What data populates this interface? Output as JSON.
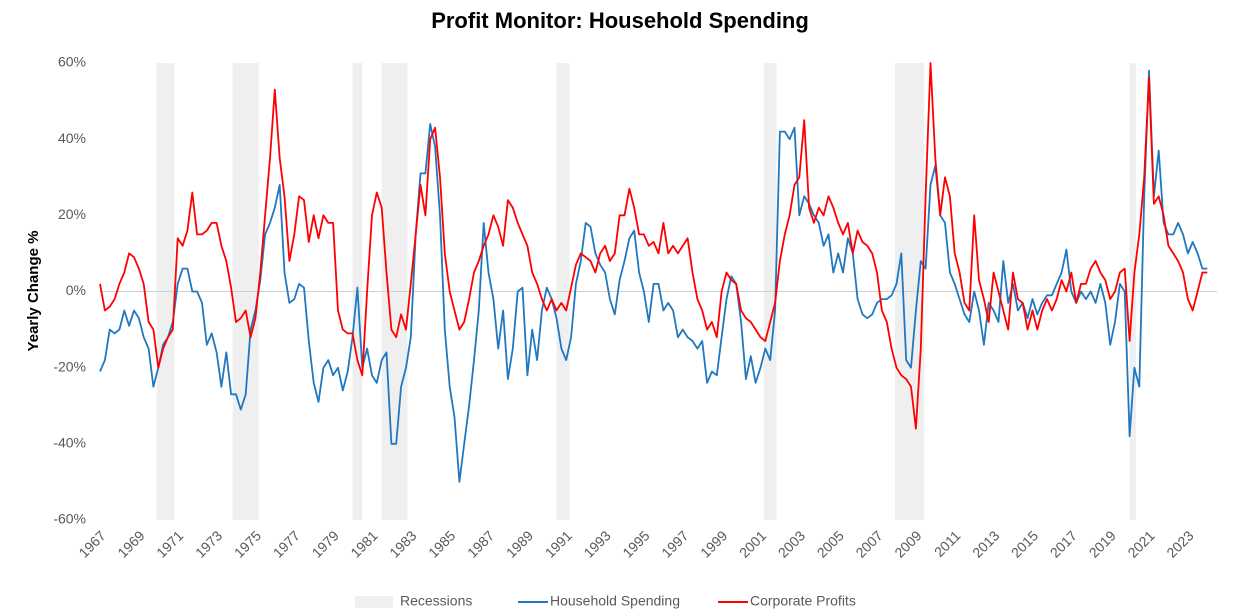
{
  "chart_data": {
    "type": "line",
    "title": "Profit Monitor: Household Spending",
    "y_label": "Yearly Change %",
    "x": [
      1967,
      1967.25,
      1967.5,
      1967.75,
      1968,
      1968.25,
      1968.5,
      1968.75,
      1969,
      1969.25,
      1969.5,
      1969.75,
      1970,
      1970.25,
      1970.5,
      1970.75,
      1971,
      1971.25,
      1971.5,
      1971.75,
      1972,
      1972.25,
      1972.5,
      1972.75,
      1973,
      1973.25,
      1973.5,
      1973.75,
      1974,
      1974.25,
      1974.5,
      1974.75,
      1975,
      1975.25,
      1975.5,
      1975.75,
      1976,
      1976.25,
      1976.5,
      1976.75,
      1977,
      1977.25,
      1977.5,
      1977.75,
      1978,
      1978.25,
      1978.5,
      1978.75,
      1979,
      1979.25,
      1979.5,
      1979.75,
      1980,
      1980.25,
      1980.5,
      1980.75,
      1981,
      1981.25,
      1981.5,
      1981.75,
      1982,
      1982.25,
      1982.5,
      1982.75,
      1983,
      1983.25,
      1983.5,
      1983.75,
      1984,
      1984.25,
      1984.5,
      1984.75,
      1985,
      1985.25,
      1985.5,
      1985.75,
      1986,
      1986.25,
      1986.5,
      1986.75,
      1987,
      1987.25,
      1987.5,
      1987.75,
      1988,
      1988.25,
      1988.5,
      1988.75,
      1989,
      1989.25,
      1989.5,
      1989.75,
      1990,
      1990.25,
      1990.5,
      1990.75,
      1991,
      1991.25,
      1991.5,
      1991.75,
      1992,
      1992.25,
      1992.5,
      1992.75,
      1993,
      1993.25,
      1993.5,
      1993.75,
      1994,
      1994.25,
      1994.5,
      1994.75,
      1995,
      1995.25,
      1995.5,
      1995.75,
      1996,
      1996.25,
      1996.5,
      1996.75,
      1997,
      1997.25,
      1997.5,
      1997.75,
      1998,
      1998.25,
      1998.5,
      1998.75,
      1999,
      1999.25,
      1999.5,
      1999.75,
      2000,
      2000.25,
      2000.5,
      2000.75,
      2001,
      2001.25,
      2001.5,
      2001.75,
      2002,
      2002.25,
      2002.5,
      2002.75,
      2003,
      2003.25,
      2003.5,
      2003.75,
      2004,
      2004.25,
      2004.5,
      2004.75,
      2005,
      2005.25,
      2005.5,
      2005.75,
      2006,
      2006.25,
      2006.5,
      2006.75,
      2007,
      2007.25,
      2007.5,
      2007.75,
      2008,
      2008.25,
      2008.5,
      2008.75,
      2009,
      2009.25,
      2009.5,
      2009.75,
      2010,
      2010.25,
      2010.5,
      2010.75,
      2011,
      2011.25,
      2011.5,
      2011.75,
      2012,
      2012.25,
      2012.5,
      2012.75,
      2013,
      2013.25,
      2013.5,
      2013.75,
      2014,
      2014.25,
      2014.5,
      2014.75,
      2015,
      2015.25,
      2015.5,
      2015.75,
      2016,
      2016.25,
      2016.5,
      2016.75,
      2017,
      2017.25,
      2017.5,
      2017.75,
      2018,
      2018.25,
      2018.5,
      2018.75,
      2019,
      2019.25,
      2019.5,
      2019.75,
      2020,
      2020.25,
      2020.5,
      2020.75,
      2021,
      2021.25,
      2021.5,
      2021.75,
      2022,
      2022.25,
      2022.5,
      2022.75,
      2023,
      2023.25,
      2023.5,
      2023.75,
      2024
    ],
    "series": [
      {
        "name": "Household Spending",
        "color": "#1f78c1",
        "values": [
          -21,
          -18,
          -10,
          -11,
          -10,
          -5,
          -9,
          -5,
          -7,
          -12,
          -15,
          -25,
          -20,
          -14,
          -12,
          -8,
          2,
          6,
          6,
          0,
          0,
          -3,
          -14,
          -11,
          -16,
          -25,
          -16,
          -27,
          -27,
          -31,
          -27,
          -10,
          -5,
          3,
          15,
          18,
          22,
          28,
          5,
          -3,
          -2,
          2,
          1,
          -13,
          -24,
          -29,
          -20,
          -18,
          -22,
          -20,
          -26,
          -21,
          -12,
          1,
          -20,
          -15,
          -22,
          -24,
          -18,
          -16,
          -40,
          -40,
          -25,
          -20,
          -12,
          15,
          31,
          31,
          44,
          38,
          20,
          -10,
          -25,
          -33,
          -50,
          -40,
          -30,
          -18,
          -5,
          18,
          5,
          -2,
          -15,
          -5,
          -23,
          -15,
          0,
          1,
          -22,
          -10,
          -18,
          -5,
          1,
          -2,
          -7,
          -15,
          -18,
          -12,
          2,
          8,
          18,
          17,
          10,
          7,
          5,
          -2,
          -6,
          3,
          8,
          14,
          16,
          5,
          0,
          -8,
          2,
          2,
          -5,
          -3,
          -5,
          -12,
          -10,
          -12,
          -13,
          -15,
          -13,
          -24,
          -21,
          -22,
          -12,
          -2,
          4,
          2,
          -8,
          -23,
          -17,
          -24,
          -20,
          -15,
          -18,
          -5,
          42,
          42,
          40,
          43,
          20,
          25,
          23,
          20,
          18,
          12,
          15,
          5,
          10,
          5,
          14,
          10,
          -2,
          -6,
          -7,
          -6,
          -3,
          -2,
          -2,
          -1,
          2,
          10,
          -18,
          -20,
          -5,
          8,
          6,
          28,
          33,
          20,
          18,
          5,
          2,
          -2,
          -6,
          -8,
          0,
          -5,
          -14,
          -3,
          -5,
          -8,
          8,
          -3,
          2,
          -5,
          -3,
          -7,
          -2,
          -6,
          -3,
          -1,
          -1,
          2,
          5,
          11,
          0,
          -3,
          0,
          -2,
          0,
          -3,
          2,
          -3,
          -14,
          -8,
          2,
          0,
          -38,
          -20,
          -25,
          25,
          58,
          25,
          37,
          18,
          15,
          15,
          18,
          15,
          10,
          13,
          10,
          6,
          6
        ]
      },
      {
        "name": "Corporate Profits",
        "color": "#ff0000",
        "values": [
          2,
          -5,
          -4,
          -2,
          2,
          5,
          10,
          9,
          6,
          2,
          -8,
          -10,
          -20,
          -15,
          -12,
          -10,
          14,
          12,
          16,
          26,
          15,
          15,
          16,
          18,
          18,
          12,
          8,
          1,
          -8,
          -7,
          -5,
          -12,
          -7,
          5,
          20,
          35,
          53,
          35,
          25,
          8,
          15,
          25,
          24,
          13,
          20,
          14,
          20,
          18,
          18,
          -5,
          -10,
          -11,
          -11,
          -18,
          -22,
          0,
          20,
          26,
          22,
          5,
          -10,
          -12,
          -6,
          -10,
          2,
          15,
          28,
          20,
          40,
          43,
          30,
          10,
          0,
          -5,
          -10,
          -8,
          -2,
          5,
          8,
          12,
          15,
          20,
          17,
          12,
          24,
          22,
          18,
          15,
          12,
          5,
          2,
          -2,
          -5,
          -2,
          -5,
          -3,
          -5,
          1,
          7,
          10,
          9,
          8,
          5,
          10,
          12,
          8,
          10,
          20,
          20,
          27,
          22,
          15,
          15,
          12,
          13,
          10,
          18,
          10,
          12,
          10,
          12,
          14,
          5,
          -2,
          -5,
          -10,
          -8,
          -12,
          0,
          5,
          3,
          2,
          -5,
          -7,
          -8,
          -10,
          -12,
          -13,
          -8,
          -3,
          8,
          15,
          20,
          28,
          30,
          45,
          22,
          18,
          22,
          20,
          25,
          22,
          18,
          15,
          18,
          10,
          16,
          13,
          12,
          10,
          5,
          -5,
          -8,
          -15,
          -20,
          -22,
          -23,
          -25,
          -36,
          -15,
          25,
          60,
          35,
          20,
          30,
          25,
          10,
          5,
          -3,
          -5,
          20,
          3,
          -2,
          -8,
          5,
          0,
          -5,
          -10,
          5,
          -2,
          -3,
          -10,
          -5,
          -10,
          -5,
          -2,
          -5,
          -2,
          3,
          0,
          5,
          -3,
          2,
          2,
          6,
          8,
          5,
          3,
          -2,
          0,
          5,
          6,
          -13,
          5,
          15,
          30,
          56,
          23,
          25,
          20,
          12,
          10,
          8,
          5,
          -2,
          -5,
          0,
          5,
          5
        ]
      }
    ],
    "shading": {
      "name": "Recessions",
      "color": "#efefef",
      "spans": [
        [
          1969.92,
          1970.83
        ],
        [
          1973.83,
          1975.17
        ],
        [
          1980,
          1980.5
        ],
        [
          1981.5,
          1982.83
        ],
        [
          1990.5,
          1991.17
        ],
        [
          2001.17,
          2001.83
        ],
        [
          2007.92,
          2009.42
        ],
        [
          2020,
          2020.33
        ]
      ]
    },
    "xlim": [
      1967,
      2024.5
    ],
    "xticks": [
      1967,
      1969,
      1971,
      1973,
      1975,
      1977,
      1979,
      1981,
      1983,
      1985,
      1987,
      1989,
      1991,
      1993,
      1995,
      1997,
      1999,
      2001,
      2003,
      2005,
      2007,
      2009,
      2011,
      2013,
      2015,
      2017,
      2019,
      2021,
      2023
    ],
    "ylim": [
      -60,
      60
    ],
    "yticks": [
      {
        "value": -60,
        "label": "-60%"
      },
      {
        "value": -40,
        "label": "-40%"
      },
      {
        "value": -20,
        "label": "-20%"
      },
      {
        "value": 0,
        "label": "0%"
      },
      {
        "value": 20,
        "label": "20%"
      },
      {
        "value": 40,
        "label": "40%"
      },
      {
        "value": 60,
        "label": "60%"
      }
    ],
    "legend": "bottom"
  }
}
